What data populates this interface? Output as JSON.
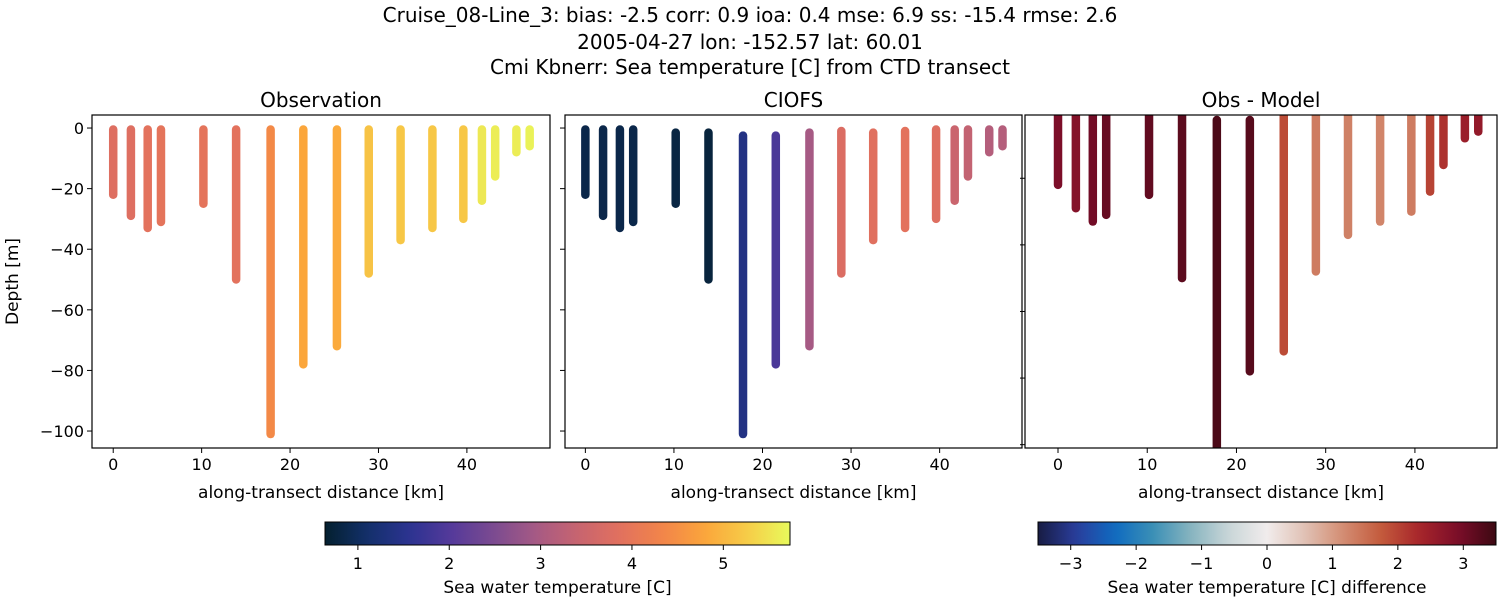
{
  "figure": {
    "title_lines": [
      "Cruise_08-Line_3: bias: -2.5  corr: 0.9  ioa: 0.4  mse: 6.9  ss: -15.4  rmse: 2.6",
      "2005-04-27 lon: -152.57 lat: 60.01",
      "Cmi Kbnerr: Sea temperature [C] from CTD transect"
    ]
  },
  "chart_data": [
    {
      "type": "scatter",
      "title": "Observation",
      "xlabel": "along-transect distance [km]",
      "ylabel": "Depth [m]",
      "xlim": [
        -2.4,
        49.4
      ],
      "ylim": [
        -105.6,
        4.3
      ],
      "xticks": [
        0,
        10,
        20,
        30,
        40
      ],
      "yticks": [
        0,
        -20,
        -40,
        -60,
        -80,
        -100
      ],
      "ytick_labels_shown": true,
      "colormap": "thermal",
      "color_range": [
        0.64,
        5.73
      ],
      "stations": {
        "x": [
          0,
          2,
          3.9,
          5.4,
          10.2,
          13.9,
          17.8,
          21.5,
          25.3,
          28.9,
          32.5,
          36.1,
          39.6,
          41.7,
          43.2,
          45.6,
          47.1
        ],
        "depth_top": [
          -0.5,
          -0.5,
          -0.5,
          -0.5,
          -0.5,
          -0.5,
          -0.5,
          -0.5,
          -0.5,
          -0.5,
          -0.5,
          -0.5,
          -0.5,
          -0.5,
          -0.5,
          -0.5,
          -0.5
        ],
        "depth_bottom": [
          -22,
          -29,
          -33,
          -31,
          -25,
          -50,
          -101,
          -78,
          -72,
          -48,
          -37,
          -33,
          -30,
          -24,
          -16,
          -8,
          -6
        ],
        "values": [
          3.8,
          3.8,
          3.9,
          3.95,
          3.95,
          3.9,
          4.4,
          4.8,
          4.85,
          5.15,
          5.2,
          5.2,
          5.2,
          5.55,
          5.6,
          5.6,
          5.65
        ]
      }
    },
    {
      "type": "scatter",
      "title": "CIOFS",
      "xlabel": "along-transect distance [km]",
      "ylabel": "",
      "xlim": [
        -2.3,
        49.3
      ],
      "ylim": [
        -105.6,
        4.3
      ],
      "xticks": [
        0,
        10,
        20,
        30,
        40
      ],
      "yticks": [
        0,
        -20,
        -40,
        -60,
        -80,
        -100
      ],
      "ytick_labels_shown": false,
      "colormap": "thermal",
      "color_range": [
        0.64,
        5.73
      ],
      "stations": {
        "x": [
          0,
          2,
          3.9,
          5.4,
          10.2,
          13.9,
          17.8,
          21.5,
          25.3,
          28.9,
          32.5,
          36.1,
          39.6,
          41.7,
          43.2,
          45.6,
          47.1
        ],
        "depth_top": [
          -0.5,
          -0.5,
          -0.5,
          -0.5,
          -1.5,
          -1.5,
          -2.5,
          -2.5,
          -1.5,
          -1,
          -1.5,
          -1,
          -0.5,
          -0.5,
          -0.5,
          -0.5,
          -0.5
        ],
        "depth_bottom": [
          -22,
          -29,
          -33,
          -31,
          -25,
          -50,
          -101,
          -78,
          -72,
          -48,
          -37,
          -33,
          -30,
          -24,
          -16,
          -8,
          -6
        ],
        "values": [
          0.85,
          0.85,
          0.85,
          0.85,
          0.8,
          0.75,
          1.4,
          1.9,
          2.95,
          3.75,
          3.85,
          3.9,
          3.8,
          3.45,
          3.35,
          3.15,
          3.15
        ]
      }
    },
    {
      "type": "scatter",
      "title": "Obs - Model",
      "xlabel": "along-transect distance [km]",
      "ylabel": "",
      "xlim": [
        -3.7,
        49.2
      ],
      "ylim": [
        -101,
        -1
      ],
      "xticks": [
        0,
        10,
        20,
        30,
        40
      ],
      "yticks": [
        -20,
        -40,
        -60,
        -80,
        -100
      ],
      "ytick_labels_shown": false,
      "colormap": "balance",
      "color_range": [
        -3.5,
        3.5
      ],
      "stations": {
        "x": [
          0,
          2,
          3.9,
          5.4,
          10.2,
          13.9,
          17.8,
          21.5,
          25.3,
          28.9,
          32.5,
          36.1,
          39.6,
          41.7,
          43.2,
          45.6,
          47.1
        ],
        "depth_top": [
          0,
          0,
          0,
          0,
          0,
          0,
          -2.5,
          -2.5,
          0,
          0,
          0,
          0,
          0,
          0,
          0,
          0,
          0
        ],
        "depth_bottom": [
          -22,
          -29,
          -33,
          -31,
          -25,
          -50,
          -104,
          -78,
          -72,
          -48,
          -37,
          -33,
          -30,
          -24,
          -16,
          -8,
          -6
        ],
        "values": [
          2.9,
          2.8,
          3.0,
          3.1,
          3.15,
          3.2,
          3.35,
          3.25,
          1.9,
          1.35,
          1.3,
          1.25,
          1.35,
          2.0,
          2.2,
          2.5,
          2.6
        ]
      }
    }
  ],
  "colorbars": [
    {
      "label": "Sea water temperature [C]",
      "range": [
        0.64,
        5.73
      ],
      "ticks": [
        1,
        2,
        3,
        4,
        5
      ],
      "tick_labels": [
        "1",
        "2",
        "3",
        "4",
        "5"
      ],
      "colormap": "thermal"
    },
    {
      "label": "Sea water temperature [C] difference",
      "range": [
        -3.5,
        3.5
      ],
      "ticks": [
        -3,
        -2,
        -1,
        0,
        1,
        2,
        3
      ],
      "tick_labels": [
        "−3",
        "−2",
        "−1",
        "0",
        "1",
        "2",
        "3"
      ],
      "colormap": "balance"
    }
  ],
  "colormaps": {
    "thermal": [
      "#04202f",
      "#13306a",
      "#2c3391",
      "#553a9a",
      "#7c4b90",
      "#a65a84",
      "#c8646f",
      "#e2715e",
      "#f28549",
      "#fba63b",
      "#f6cd48",
      "#e8fa5b"
    ],
    "balance": [
      "#181c43",
      "#2a3d9c",
      "#0f6ac0",
      "#3a8fb6",
      "#87b4bf",
      "#c9d6d8",
      "#f1ecec",
      "#e0c1b4",
      "#d38c72",
      "#c35a3c",
      "#a7252a",
      "#7b0d29",
      "#3c0912"
    ]
  }
}
